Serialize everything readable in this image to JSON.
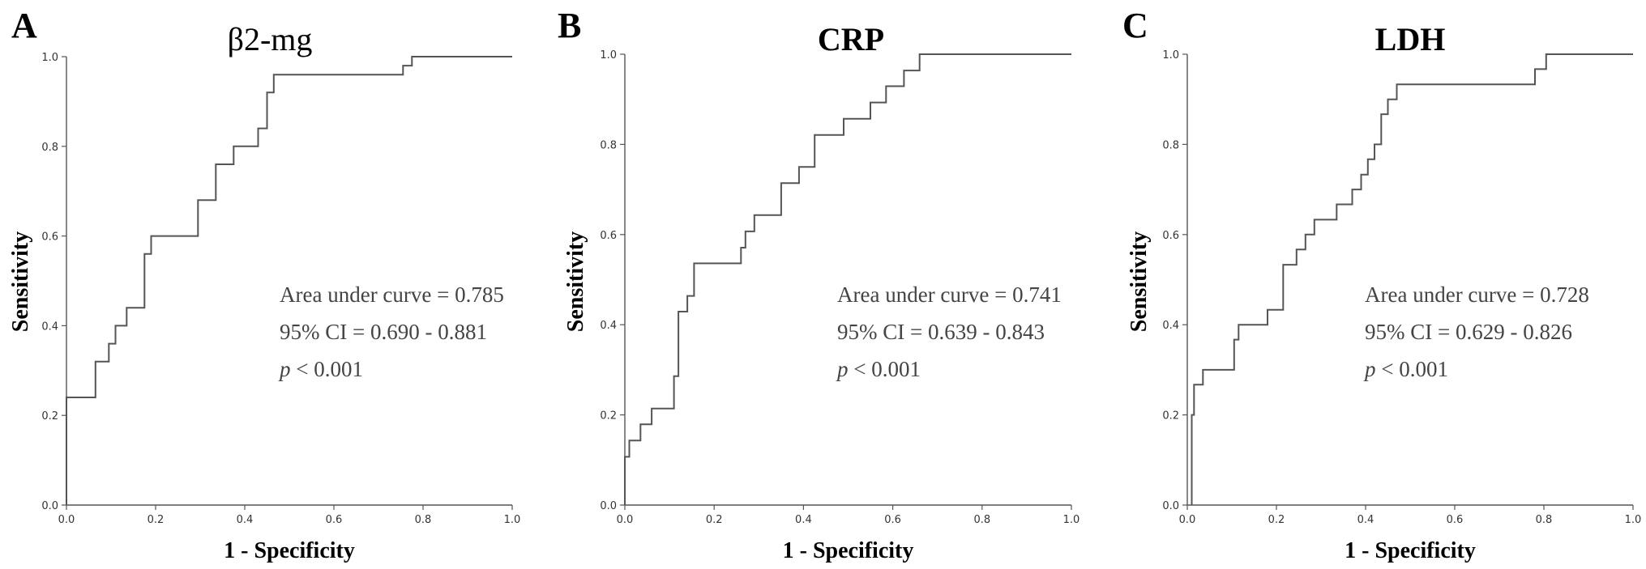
{
  "chart_data": [
    {
      "type": "line",
      "panel": "A",
      "title": "β2-mg",
      "xlabel": "1 - Specificity",
      "ylabel": "Sensitivity",
      "xlim": [
        0,
        1
      ],
      "ylim": [
        0,
        1
      ],
      "xticks": [
        "0.0",
        "0.2",
        "0.4",
        "0.6",
        "0.8",
        "1.0"
      ],
      "yticks": [
        "0.0",
        "0.2",
        "0.4",
        "0.6",
        "0.8",
        "1.0"
      ],
      "annotations": [
        "Area under curve = 0.785",
        "95% CI = 0.690 - 0.881",
        "p",
        " < 0.001"
      ],
      "series": [
        {
          "x": [
            0,
            0,
            0.065,
            0.065,
            0.095,
            0.095,
            0.11,
            0.11,
            0.135,
            0.135,
            0.175,
            0.175,
            0.19,
            0.19,
            0.295,
            0.295,
            0.335,
            0.335,
            0.375,
            0.375,
            0.43,
            0.43,
            0.45,
            0.45,
            0.465,
            0.465,
            0.755,
            0.755,
            0.775,
            0.775,
            1.0
          ],
          "y": [
            0,
            0.24,
            0.24,
            0.32,
            0.32,
            0.36,
            0.36,
            0.4,
            0.4,
            0.44,
            0.44,
            0.56,
            0.56,
            0.6,
            0.6,
            0.68,
            0.68,
            0.76,
            0.76,
            0.8,
            0.8,
            0.84,
            0.84,
            0.92,
            0.92,
            0.96,
            0.96,
            0.98,
            0.98,
            1.0,
            1.0
          ]
        }
      ]
    },
    {
      "type": "line",
      "panel": "B",
      "title": "CRP",
      "xlabel": "1 - Specificity",
      "ylabel": "Sensitivity",
      "xlim": [
        0,
        1
      ],
      "ylim": [
        0,
        1
      ],
      "xticks": [
        "0.0",
        "0.2",
        "0.4",
        "0.6",
        "0.8",
        "1.0"
      ],
      "yticks": [
        "0.0",
        "0.2",
        "0.4",
        "0.6",
        "0.8",
        "1.0"
      ],
      "annotations": [
        "Area under curve = 0.741",
        "95% CI = 0.639 - 0.843",
        "p",
        " < 0.001"
      ],
      "series": [
        {
          "x": [
            0,
            0,
            0.01,
            0.01,
            0.035,
            0.035,
            0.06,
            0.06,
            0.11,
            0.11,
            0.12,
            0.12,
            0.14,
            0.14,
            0.155,
            0.155,
            0.26,
            0.26,
            0.27,
            0.27,
            0.29,
            0.29,
            0.35,
            0.35,
            0.39,
            0.39,
            0.425,
            0.425,
            0.49,
            0.49,
            0.55,
            0.55,
            0.585,
            0.585,
            0.625,
            0.625,
            0.66,
            0.66,
            0.905,
            0.905,
            1.0
          ],
          "y": [
            0,
            0.107,
            0.107,
            0.143,
            0.143,
            0.179,
            0.179,
            0.214,
            0.214,
            0.286,
            0.286,
            0.429,
            0.429,
            0.464,
            0.464,
            0.536,
            0.536,
            0.571,
            0.571,
            0.607,
            0.607,
            0.643,
            0.643,
            0.714,
            0.714,
            0.75,
            0.75,
            0.821,
            0.821,
            0.857,
            0.857,
            0.893,
            0.893,
            0.929,
            0.929,
            0.964,
            0.964,
            1.0,
            1.0,
            1.0,
            1.0
          ]
        }
      ]
    },
    {
      "type": "line",
      "panel": "C",
      "title": "LDH",
      "xlabel": "1 - Specificity",
      "ylabel": "Sensitivity",
      "xlim": [
        0,
        1
      ],
      "ylim": [
        0,
        1
      ],
      "xticks": [
        "0.0",
        "0.2",
        "0.4",
        "0.6",
        "0.8",
        "1.0"
      ],
      "yticks": [
        "0.0",
        "0.2",
        "0.4",
        "0.6",
        "0.8",
        "1.0"
      ],
      "annotations": [
        "Area under curve = 0.728",
        "95% CI = 0.629 - 0.826",
        "p",
        " < 0.001"
      ],
      "series": [
        {
          "x": [
            0.01,
            0.01,
            0.015,
            0.015,
            0.035,
            0.035,
            0.105,
            0.105,
            0.115,
            0.115,
            0.18,
            0.18,
            0.215,
            0.215,
            0.245,
            0.245,
            0.265,
            0.265,
            0.285,
            0.285,
            0.335,
            0.335,
            0.37,
            0.37,
            0.39,
            0.39,
            0.405,
            0.405,
            0.42,
            0.42,
            0.435,
            0.435,
            0.45,
            0.45,
            0.47,
            0.47,
            0.49,
            0.49,
            0.55,
            0.55,
            0.78,
            0.78,
            0.805,
            0.805,
            0.83,
            0.83,
            1.0
          ],
          "y": [
            0,
            0.2,
            0.2,
            0.267,
            0.267,
            0.3,
            0.3,
            0.367,
            0.367,
            0.4,
            0.4,
            0.433,
            0.433,
            0.533,
            0.533,
            0.567,
            0.567,
            0.6,
            0.6,
            0.633,
            0.633,
            0.667,
            0.667,
            0.7,
            0.7,
            0.733,
            0.733,
            0.767,
            0.767,
            0.8,
            0.8,
            0.867,
            0.867,
            0.9,
            0.9,
            0.933,
            0.933,
            0.933,
            0.933,
            0.933,
            0.933,
            0.967,
            0.967,
            1.0,
            1.0,
            1.0,
            1.0
          ]
        }
      ]
    }
  ]
}
